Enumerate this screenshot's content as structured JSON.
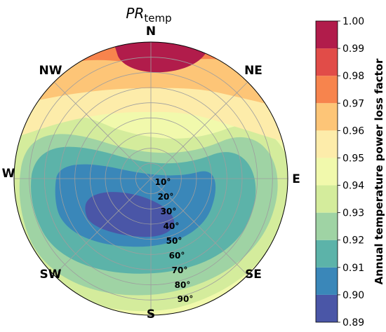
{
  "chart_data": {
    "type": "contour",
    "projection": "polar",
    "title": "PR",
    "title_subscript": "temp",
    "directions": [
      "N",
      "NE",
      "E",
      "SE",
      "S",
      "SW",
      "W",
      "NW"
    ],
    "radial_ticks": [
      "10°",
      "20°",
      "30°",
      "40°",
      "50°",
      "60°",
      "70°",
      "80°",
      "90°"
    ],
    "radial_range": [
      0,
      90
    ],
    "grid": true,
    "colorbar": {
      "label": "Annual temperature power loss factor",
      "ticks": [
        "0.89",
        "0.90",
        "0.91",
        "0.92",
        "0.93",
        "0.94",
        "0.95",
        "0.96",
        "0.97",
        "0.98",
        "0.99",
        "1.00"
      ],
      "range": [
        0.89,
        1.0
      ],
      "colors": [
        "#4a56a7",
        "#3a87b9",
        "#5cb3a9",
        "#9fd3a4",
        "#d4ec9c",
        "#f1f9ac",
        "#fdecaa",
        "#fdc577",
        "#f7844d",
        "#e14c48",
        "#b11c4b"
      ],
      "placement": "right"
    },
    "levels": [
      {
        "range": [
          0.94,
          0.95
        ],
        "zone": "background"
      },
      {
        "range": [
          0.93,
          0.94
        ],
        "zone": "south-west lobe"
      },
      {
        "range": [
          0.92,
          0.93
        ],
        "zone": "south-west lobe"
      },
      {
        "range": [
          0.91,
          0.92
        ],
        "zone": "south-west lobe"
      },
      {
        "range": [
          0.9,
          0.91
        ],
        "zone": "south-west lobe"
      },
      {
        "range": [
          0.89,
          0.9
        ],
        "zone": "core near tilt 40°, azimuth SW"
      },
      {
        "range": [
          0.95,
          0.96
        ],
        "zone": "north band"
      },
      {
        "range": [
          0.96,
          0.97
        ],
        "zone": "north band"
      },
      {
        "range": [
          0.97,
          0.98
        ],
        "zone": "north band"
      },
      {
        "range": [
          0.98,
          0.99
        ],
        "zone": "north band"
      },
      {
        "range": [
          0.99,
          1.0
        ],
        "zone": "north edge"
      }
    ]
  }
}
